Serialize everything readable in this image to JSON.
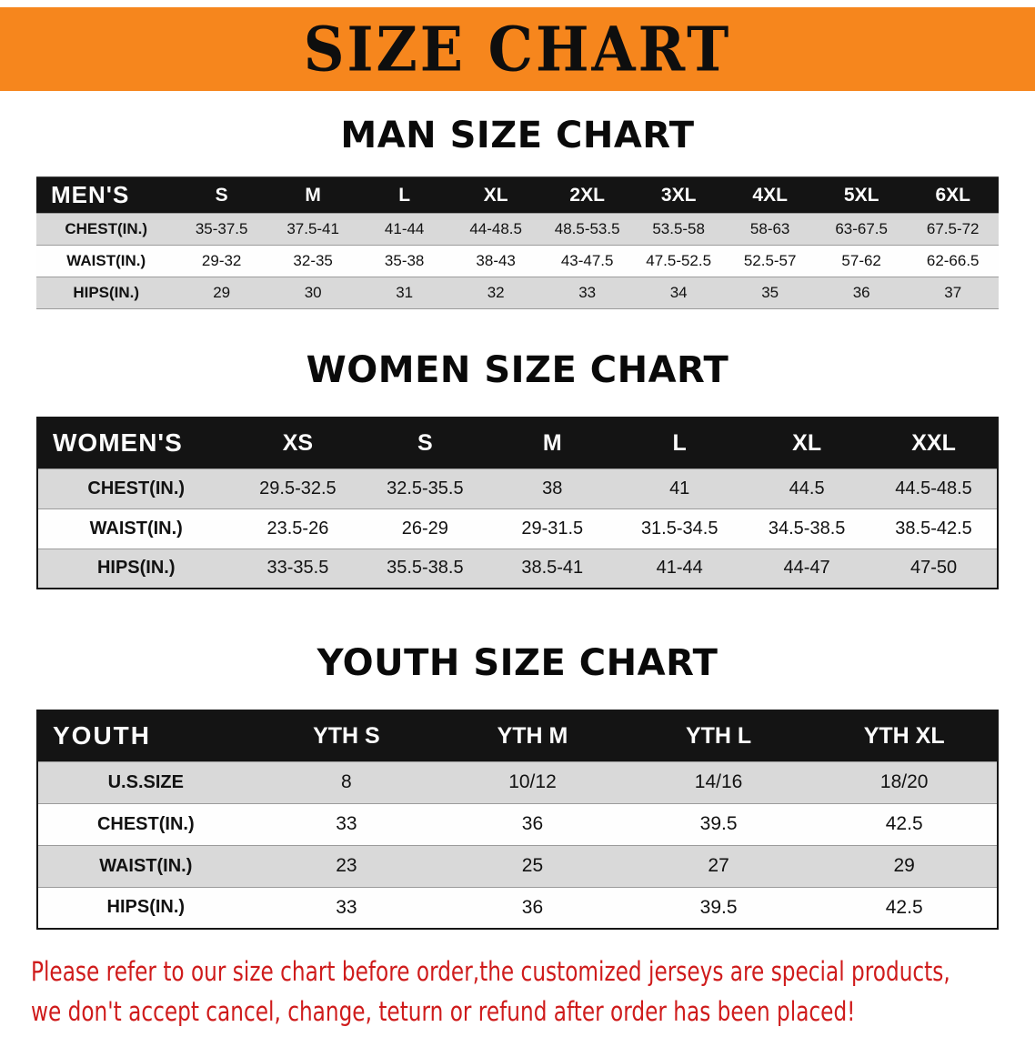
{
  "banner": {
    "title": "SIZE CHART"
  },
  "men": {
    "heading": "MAN SIZE CHART",
    "table": {
      "header": [
        "MEN'S",
        "S",
        "M",
        "L",
        "XL",
        "2XL",
        "3XL",
        "4XL",
        "5XL",
        "6XL"
      ],
      "rows": [
        [
          "CHEST(IN.)",
          "35-37.5",
          "37.5-41",
          "41-44",
          "44-48.5",
          "48.5-53.5",
          "53.5-58",
          "58-63",
          "63-67.5",
          "67.5-72"
        ],
        [
          "WAIST(IN.)",
          "29-32",
          "32-35",
          "35-38",
          "38-43",
          "43-47.5",
          "47.5-52.5",
          "52.5-57",
          "57-62",
          "62-66.5"
        ],
        [
          "HIPS(IN.)",
          "29",
          "30",
          "31",
          "32",
          "33",
          "34",
          "35",
          "36",
          "37"
        ]
      ]
    }
  },
  "women": {
    "heading": "WOMEN SIZE CHART",
    "table": {
      "header": [
        "WOMEN'S",
        "XS",
        "S",
        "M",
        "L",
        "XL",
        "XXL"
      ],
      "rows": [
        [
          "CHEST(IN.)",
          "29.5-32.5",
          "32.5-35.5",
          "38",
          "41",
          "44.5",
          "44.5-48.5"
        ],
        [
          "WAIST(IN.)",
          "23.5-26",
          "26-29",
          "29-31.5",
          "31.5-34.5",
          "34.5-38.5",
          "38.5-42.5"
        ],
        [
          "HIPS(IN.)",
          "33-35.5",
          "35.5-38.5",
          "38.5-41",
          "41-44",
          "44-47",
          "47-50"
        ]
      ]
    }
  },
  "youth": {
    "heading": "YOUTH SIZE CHART",
    "table": {
      "header": [
        "YOUTH",
        "YTH S",
        "YTH M",
        "YTH L",
        "YTH XL"
      ],
      "rows": [
        [
          "U.S.SIZE",
          "8",
          "10/12",
          "14/16",
          "18/20"
        ],
        [
          "CHEST(IN.)",
          "33",
          "36",
          "39.5",
          "42.5"
        ],
        [
          "WAIST(IN.)",
          "23",
          "25",
          "27",
          "29"
        ],
        [
          "HIPS(IN.)",
          "33",
          "36",
          "39.5",
          "42.5"
        ]
      ]
    }
  },
  "footer": {
    "line1": "Please refer to our size chart before order,the customized jerseys are special products,",
    "line2": "we don't accept cancel, change, teturn or refund after order has been placed!"
  },
  "colors": {
    "banner_orange": "#f6861d",
    "table_header_black": "#141414",
    "row_gray": "#d9d9d9",
    "notice_red": "#cf1b1b"
  }
}
